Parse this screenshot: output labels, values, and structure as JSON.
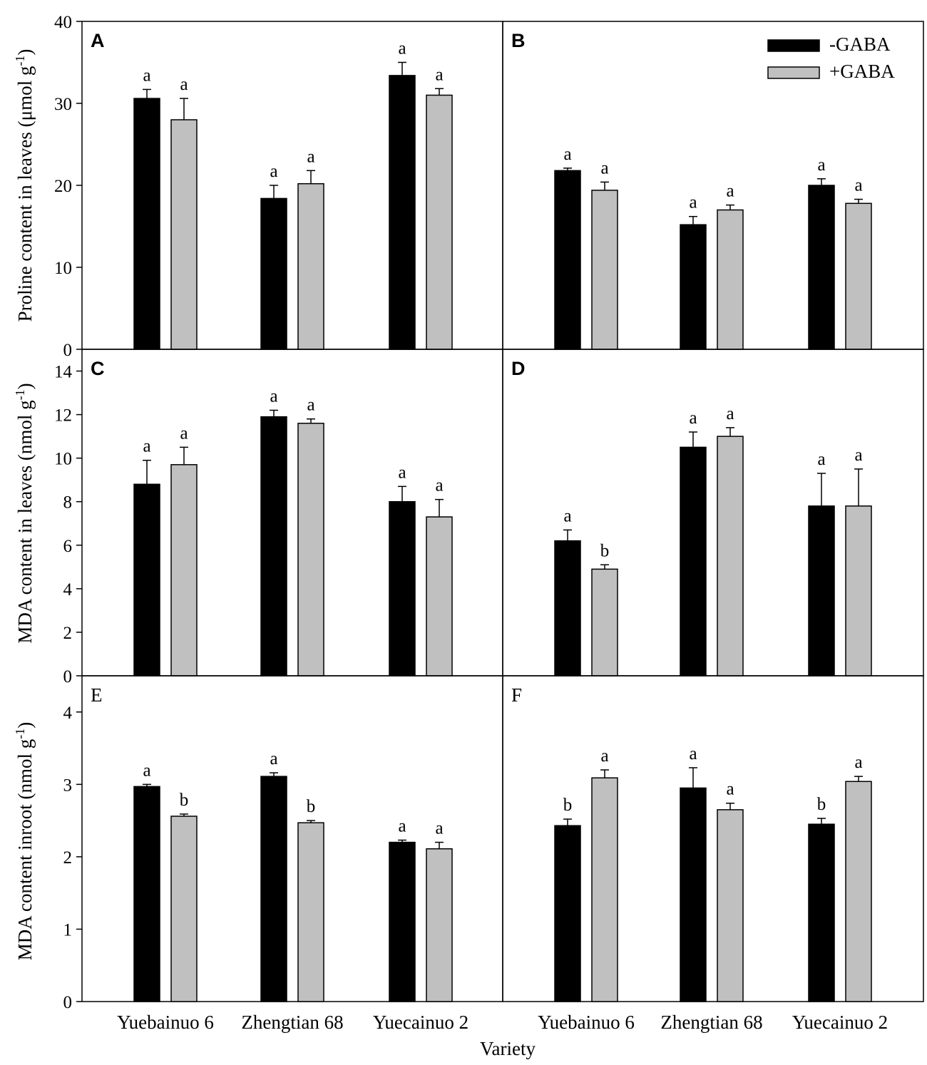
{
  "chart_data": [
    {
      "type": "bar",
      "panel": "A",
      "ylabel": "Proline content in leaves (μmol g-1)",
      "ylim": [
        0,
        40
      ],
      "yticks": [
        0,
        10,
        20,
        30,
        40
      ],
      "categories": [
        "Yuebainuo 6",
        "Zhengtian 68",
        "Yuecainuo 2"
      ],
      "series": [
        {
          "name": "-GABA",
          "color": "#000000",
          "values": [
            30.6,
            18.4,
            33.4
          ],
          "errors": [
            1.1,
            1.6,
            1.6
          ],
          "letters": [
            "a",
            "a",
            "a"
          ]
        },
        {
          "name": "+GABA",
          "color": "#c0c0c0",
          "values": [
            28.0,
            20.2,
            31.0
          ],
          "errors": [
            2.6,
            1.6,
            0.8
          ],
          "letters": [
            "a",
            "a",
            "a"
          ]
        }
      ]
    },
    {
      "type": "bar",
      "panel": "B",
      "ylim": [
        0,
        40
      ],
      "categories": [
        "Yuebainuo 6",
        "Zhengtian 68",
        "Yuecainuo 2"
      ],
      "series": [
        {
          "name": "-GABA",
          "color": "#000000",
          "values": [
            21.8,
            15.2,
            20.0
          ],
          "errors": [
            0.3,
            1.0,
            0.8
          ],
          "letters": [
            "a",
            "a",
            "a"
          ]
        },
        {
          "name": "+GABA",
          "color": "#c0c0c0",
          "values": [
            19.4,
            17.0,
            17.8
          ],
          "errors": [
            1.0,
            0.6,
            0.5
          ],
          "letters": [
            "a",
            "a",
            "a"
          ]
        }
      ],
      "legend": {
        "position": "top-right",
        "entries": [
          "-GABA",
          "+GABA"
        ]
      }
    },
    {
      "type": "bar",
      "panel": "C",
      "ylabel": "MDA content in leaves (nmol g-1)",
      "ylim": [
        0,
        15
      ],
      "yticks": [
        0,
        2,
        4,
        6,
        8,
        10,
        12,
        14
      ],
      "categories": [
        "Yuebainuo 6",
        "Zhengtian 68",
        "Yuecainuo 2"
      ],
      "series": [
        {
          "name": "-GABA",
          "color": "#000000",
          "values": [
            8.8,
            11.9,
            8.0
          ],
          "errors": [
            1.1,
            0.3,
            0.7
          ],
          "letters": [
            "a",
            "a",
            "a"
          ]
        },
        {
          "name": "+GABA",
          "color": "#c0c0c0",
          "values": [
            9.7,
            11.6,
            7.3
          ],
          "errors": [
            0.8,
            0.2,
            0.8
          ],
          "letters": [
            "a",
            "a",
            "a"
          ]
        }
      ]
    },
    {
      "type": "bar",
      "panel": "D",
      "ylim": [
        0,
        15
      ],
      "categories": [
        "Yuebainuo 6",
        "Zhengtian 68",
        "Yuecainuo 2"
      ],
      "series": [
        {
          "name": "-GABA",
          "color": "#000000",
          "values": [
            6.2,
            10.5,
            7.8
          ],
          "errors": [
            0.5,
            0.7,
            1.5
          ],
          "letters": [
            "a",
            "a",
            "a"
          ]
        },
        {
          "name": "+GABA",
          "color": "#c0c0c0",
          "values": [
            4.9,
            11.0,
            7.8
          ],
          "errors": [
            0.2,
            0.4,
            1.7
          ],
          "letters": [
            "b",
            "a",
            "a"
          ]
        }
      ]
    },
    {
      "type": "bar",
      "panel": "E",
      "ylabel": "MDA content inroot (nmol g-1)",
      "ylim": [
        0,
        4.5
      ],
      "yticks": [
        0,
        1,
        2,
        3,
        4
      ],
      "categories": [
        "Yuebainuo 6",
        "Zhengtian 68",
        "Yuecainuo 2"
      ],
      "series": [
        {
          "name": "-GABA",
          "color": "#000000",
          "values": [
            2.97,
            3.11,
            2.2
          ],
          "errors": [
            0.03,
            0.05,
            0.03
          ],
          "letters": [
            "a",
            "a",
            "a"
          ]
        },
        {
          "name": "+GABA",
          "color": "#c0c0c0",
          "values": [
            2.56,
            2.47,
            2.11
          ],
          "errors": [
            0.03,
            0.03,
            0.09
          ],
          "letters": [
            "b",
            "b",
            "a"
          ]
        }
      ]
    },
    {
      "type": "bar",
      "panel": "F",
      "ylim": [
        0,
        4.5
      ],
      "categories": [
        "Yuebainuo 6",
        "Zhengtian 68",
        "Yuecainuo 2"
      ],
      "series": [
        {
          "name": "-GABA",
          "color": "#000000",
          "values": [
            2.43,
            2.95,
            2.45
          ],
          "errors": [
            0.09,
            0.28,
            0.08
          ],
          "letters": [
            "b",
            "a",
            "b"
          ]
        },
        {
          "name": "+GABA",
          "color": "#c0c0c0",
          "values": [
            3.09,
            2.65,
            3.04
          ],
          "errors": [
            0.11,
            0.09,
            0.07
          ],
          "letters": [
            "a",
            "a",
            "a"
          ]
        }
      ]
    }
  ],
  "xlabel": "Variety"
}
